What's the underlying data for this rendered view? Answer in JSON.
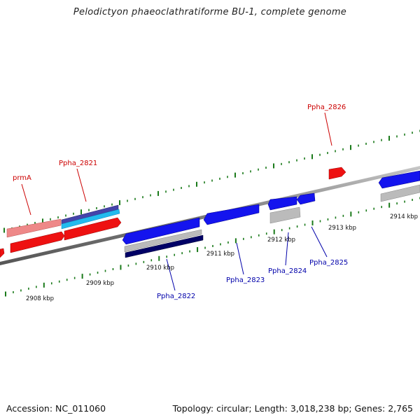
{
  "title": "Pelodictyon phaeoclathratiforme BU-1, complete genome",
  "accession": "Accession: NC_011060",
  "summary": "Topology: circular; Length: 3,018,238 bp; Genes: 2,765",
  "colors": {
    "backbone": "#8a8a8a",
    "tick": "#1a7a1a",
    "gene_label_forward": "#cc0000",
    "gene_label_reverse": "#0000aa",
    "kbp_label": "#111111"
  },
  "kbp_ticks": [
    {
      "label": "2908 kbp",
      "kbp": 2908
    },
    {
      "label": "2909 kbp",
      "kbp": 2909
    },
    {
      "label": "2910 kbp",
      "kbp": 2910
    },
    {
      "label": "2911 kbp",
      "kbp": 2911
    },
    {
      "label": "2912 kbp",
      "kbp": 2912
    },
    {
      "label": "2913 kbp",
      "kbp": 2913
    },
    {
      "label": "2914 kbp",
      "kbp": 2914
    }
  ],
  "gene_labels": [
    {
      "text": "prmA",
      "strand": "forward"
    },
    {
      "text": "Ppha_2821",
      "strand": "forward"
    },
    {
      "text": "Ppha_2826",
      "strand": "forward"
    },
    {
      "text": "Ppha_2822",
      "strand": "reverse"
    },
    {
      "text": "Ppha_2823",
      "strand": "reverse"
    },
    {
      "text": "Ppha_2824",
      "strand": "reverse"
    },
    {
      "text": "Ppha_2825",
      "strand": "reverse"
    }
  ]
}
